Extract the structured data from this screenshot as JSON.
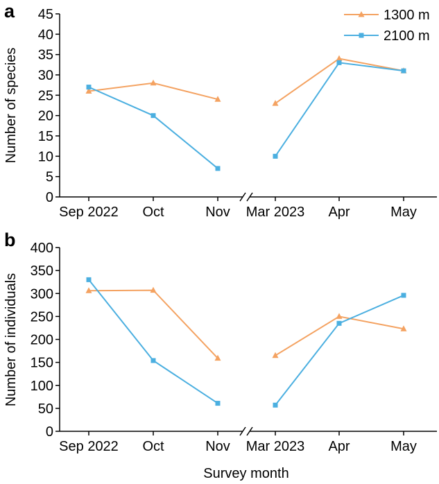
{
  "colors": {
    "series_1300": "#F4A261",
    "series_2100": "#4BAFE0",
    "axis": "#000000"
  },
  "legend": [
    "1300 m",
    "2100 m"
  ],
  "shared_xlabel": "Survey month",
  "chart_data": [
    {
      "panel_label": "a",
      "type": "line",
      "ylabel": "Number of species",
      "categories": [
        "Sep 2022",
        "Oct",
        "Nov",
        "Mar 2023",
        "Apr",
        "May"
      ],
      "ylim": [
        0,
        45
      ],
      "yticks": [
        "0",
        "5",
        "10",
        "15",
        "20",
        "25",
        "30",
        "35",
        "40",
        "45"
      ],
      "axis_break": "between Nov and Mar 2023",
      "legend_position": "top-right",
      "series": [
        {
          "name": "1300 m",
          "marker": "triangle",
          "values": [
            26,
            28,
            24,
            23,
            34,
            31
          ]
        },
        {
          "name": "2100 m",
          "marker": "square",
          "values": [
            27,
            20,
            7,
            10,
            33,
            31
          ]
        }
      ]
    },
    {
      "panel_label": "b",
      "type": "line",
      "ylabel": "Number of individuals",
      "categories": [
        "Sep 2022",
        "Oct",
        "Nov",
        "Mar 2023",
        "Apr",
        "May"
      ],
      "ylim": [
        0,
        400
      ],
      "yticks": [
        "0",
        "50",
        "100",
        "150",
        "200",
        "250",
        "300",
        "350",
        "400"
      ],
      "axis_break": "between Nov and Mar 2023",
      "series": [
        {
          "name": "1300 m",
          "marker": "triangle",
          "values": [
            306,
            307,
            159,
            165,
            250,
            223
          ]
        },
        {
          "name": "2100 m",
          "marker": "square",
          "values": [
            330,
            154,
            61,
            57,
            235,
            296
          ]
        }
      ]
    }
  ]
}
